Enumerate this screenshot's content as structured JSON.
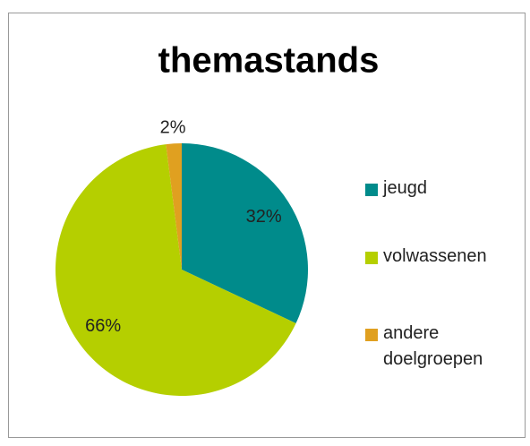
{
  "chart_data": {
    "type": "pie",
    "title": "themastands",
    "categories": [
      "jeugd",
      "volwassenen",
      "andere doelgroepen"
    ],
    "values": [
      32,
      66,
      2
    ],
    "value_labels": [
      "32%",
      "66%",
      "2%"
    ],
    "colors": [
      "#008b8b",
      "#b5cf00",
      "#e0a020"
    ],
    "legend": "right"
  }
}
